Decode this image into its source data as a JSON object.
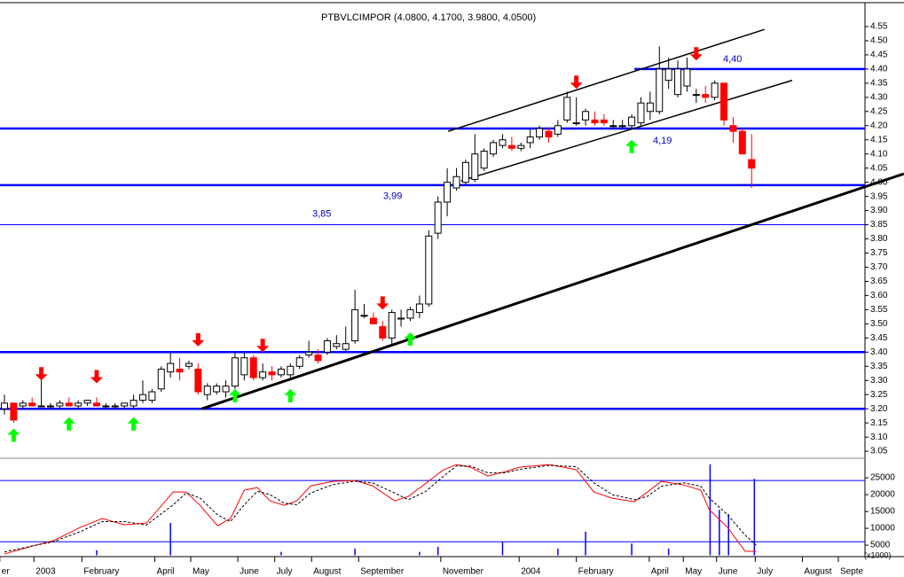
{
  "chart_data": {
    "type": "candlestick",
    "title": "PTBVLCIMPOR (4.0800, 4.1700, 3.9800, 4.0500)",
    "x": [
      0,
      1,
      2,
      3,
      4,
      5,
      6,
      7,
      8,
      9,
      10,
      11,
      12,
      13,
      14,
      15,
      16,
      17,
      18,
      19,
      20,
      21,
      22,
      23,
      24,
      25,
      26,
      27,
      28,
      29,
      30,
      31,
      32,
      33,
      34,
      35,
      36,
      37,
      38,
      39,
      40,
      41,
      42,
      43,
      44,
      45,
      46,
      47,
      48,
      49,
      50,
      51,
      52,
      53,
      54,
      55,
      56,
      57,
      58,
      59,
      60,
      61,
      62,
      63,
      64,
      65,
      66,
      67,
      68,
      69,
      70,
      71,
      72,
      73,
      74,
      75,
      76,
      77,
      78,
      79,
      80,
      81
    ],
    "open": [
      3.2,
      3.22,
      3.21,
      3.22,
      3.21,
      3.21,
      3.21,
      3.22,
      3.21,
      3.22,
      3.22,
      3.21,
      3.21,
      3.21,
      3.21,
      3.23,
      3.23,
      3.27,
      3.33,
      3.34,
      3.35,
      3.34,
      3.25,
      3.26,
      3.26,
      3.28,
      3.32,
      3.38,
      3.31,
      3.33,
      3.32,
      3.32,
      3.35,
      3.39,
      3.39,
      3.4,
      3.42,
      3.41,
      3.44,
      3.53,
      3.52,
      3.49,
      3.45,
      3.52,
      3.52,
      3.54,
      3.57,
      3.82,
      3.93,
      3.98,
      4.0,
      4.01,
      4.05,
      4.1,
      4.13,
      4.13,
      4.12,
      4.14,
      4.16,
      4.18,
      4.17,
      4.22,
      4.21,
      4.22,
      4.22,
      4.22,
      4.2,
      4.2,
      4.2,
      4.21,
      4.25,
      4.25,
      4.36,
      4.31,
      4.34,
      4.31,
      4.31,
      4.3,
      4.35,
      4.2,
      4.18,
      4.08
    ],
    "high": [
      3.25,
      3.22,
      3.23,
      3.24,
      3.31,
      3.22,
      3.23,
      3.24,
      3.23,
      3.23,
      3.24,
      3.22,
      3.22,
      3.22,
      3.25,
      3.3,
      3.27,
      3.35,
      3.4,
      3.38,
      3.37,
      3.36,
      3.29,
      3.29,
      3.3,
      3.4,
      3.4,
      3.39,
      3.36,
      3.35,
      3.35,
      3.36,
      3.39,
      3.44,
      3.41,
      3.45,
      3.46,
      3.49,
      3.62,
      3.57,
      3.54,
      3.51,
      3.55,
      3.55,
      3.56,
      3.6,
      3.83,
      3.95,
      4.05,
      4.05,
      4.08,
      4.17,
      4.12,
      4.15,
      4.17,
      4.16,
      4.14,
      4.19,
      4.2,
      4.19,
      4.22,
      4.32,
      4.3,
      4.26,
      4.25,
      4.24,
      4.22,
      4.22,
      4.24,
      4.3,
      4.32,
      4.48,
      4.44,
      4.43,
      4.44,
      4.33,
      4.34,
      4.36,
      4.35,
      4.23,
      4.19,
      4.17
    ],
    "low": [
      3.18,
      3.15,
      3.2,
      3.21,
      3.21,
      3.2,
      3.2,
      3.21,
      3.2,
      3.21,
      3.21,
      3.2,
      3.2,
      3.2,
      3.2,
      3.22,
      3.22,
      3.26,
      3.31,
      3.3,
      3.34,
      3.25,
      3.23,
      3.25,
      3.24,
      3.27,
      3.3,
      3.3,
      3.3,
      3.3,
      3.31,
      3.31,
      3.34,
      3.38,
      3.36,
      3.39,
      3.41,
      3.4,
      3.43,
      3.52,
      3.5,
      3.44,
      3.42,
      3.49,
      3.51,
      3.52,
      3.56,
      3.8,
      3.88,
      3.97,
      3.99,
      4.0,
      4.04,
      4.09,
      4.12,
      4.11,
      4.11,
      4.12,
      4.15,
      4.14,
      4.16,
      4.21,
      4.2,
      4.2,
      4.2,
      4.2,
      4.19,
      4.19,
      4.19,
      4.2,
      4.22,
      4.24,
      4.33,
      4.3,
      4.32,
      4.28,
      4.28,
      4.29,
      4.2,
      4.14,
      4.1,
      3.98
    ],
    "close": [
      3.22,
      3.16,
      3.22,
      3.21,
      3.21,
      3.21,
      3.22,
      3.21,
      3.22,
      3.23,
      3.21,
      3.21,
      3.21,
      3.22,
      3.23,
      3.25,
      3.26,
      3.34,
      3.36,
      3.33,
      3.36,
      3.26,
      3.28,
      3.28,
      3.28,
      3.38,
      3.38,
      3.31,
      3.33,
      3.32,
      3.34,
      3.35,
      3.38,
      3.4,
      3.37,
      3.44,
      3.43,
      3.43,
      3.55,
      3.53,
      3.5,
      3.45,
      3.54,
      3.52,
      3.55,
      3.57,
      3.81,
      3.93,
      4.0,
      4.02,
      4.07,
      4.1,
      4.11,
      4.14,
      4.15,
      4.12,
      4.13,
      4.16,
      4.19,
      4.16,
      4.2,
      4.3,
      4.21,
      4.25,
      4.21,
      4.21,
      4.2,
      4.2,
      4.23,
      4.28,
      4.28,
      4.4,
      4.4,
      4.4,
      4.4,
      4.31,
      4.3,
      4.35,
      4.22,
      4.18,
      4.1,
      4.05
    ],
    "up_color": "#ffffff",
    "down_color": "#ff0000",
    "xlim": [
      0,
      93
    ],
    "xticks": [
      {
        "value": -0.5,
        "label": "er"
      },
      {
        "value": 3.2,
        "label": "2003"
      },
      {
        "value": 8.4,
        "label": "February"
      },
      {
        "value": 16.3,
        "label": "April"
      },
      {
        "value": 20.2,
        "label": "May"
      },
      {
        "value": 25.3,
        "label": "June"
      },
      {
        "value": 29.3,
        "label": "July"
      },
      {
        "value": 33.3,
        "label": "August"
      },
      {
        "value": 38.4,
        "label": "September"
      },
      {
        "value": 47.3,
        "label": "November"
      },
      {
        "value": 55.8,
        "label": "2004"
      },
      {
        "value": 62,
        "label": "February"
      },
      {
        "value": 69.9,
        "label": "April"
      },
      {
        "value": 73.6,
        "label": "May"
      },
      {
        "value": 77.2,
        "label": "June"
      },
      {
        "value": 81.4,
        "label": "July"
      },
      {
        "value": 86.5,
        "label": "August"
      },
      {
        "value": 90.4,
        "label": "Septe"
      }
    ],
    "ylim": [
      3.04,
      4.62
    ],
    "yticks": [
      3.05,
      {
        "value": 3.1,
        "label": "3.10"
      },
      3.15,
      {
        "value": 3.2,
        "label": "3.20"
      },
      3.25,
      {
        "value": 3.3,
        "label": "3.30"
      },
      3.35,
      {
        "value": 3.4,
        "label": "3.40"
      },
      3.45,
      {
        "value": 3.5,
        "label": "3.50"
      },
      3.55,
      {
        "value": 3.6,
        "label": "3.60"
      },
      3.65,
      {
        "value": 3.7,
        "label": "3.70"
      },
      3.75,
      {
        "value": 3.8,
        "label": "3.80"
      },
      3.85,
      {
        "value": 3.9,
        "label": "3.90"
      },
      3.95,
      {
        "value": 4,
        "label": "4.00"
      },
      4.05,
      {
        "value": 4.1,
        "label": "4.10"
      },
      4.15,
      {
        "value": 4.2,
        "label": "4.20"
      },
      4.25,
      {
        "value": 4.3,
        "label": "4.30"
      },
      4.35,
      {
        "value": 4.4,
        "label": "4.40"
      },
      4.45,
      {
        "value": 4.5,
        "label": "4.50"
      },
      4.55
    ],
    "hlines": [
      {
        "value": 4.4,
        "label": "4,40",
        "x_from": 68.3,
        "color": "#0000ff"
      },
      {
        "value": 4.19,
        "label": "4,19",
        "color": "#0000ff"
      },
      {
        "value": 3.99,
        "label": "3,99",
        "color": "#0000ff"
      },
      {
        "value": 3.85,
        "label": "3,85",
        "color": "#0000ff"
      },
      {
        "value": 3.4,
        "color": "#0000ff"
      },
      {
        "value": 3.2,
        "color": "#0000ff"
      }
    ],
    "trendlines": [
      {
        "x": [
          48.1,
          82.4
        ],
        "values": [
          4.18,
          4.54
        ],
        "color": "#000000"
      },
      {
        "x": [
          49.5,
          85.4
        ],
        "values": [
          4.005,
          4.36
        ],
        "color": "#000000"
      },
      {
        "x": [
          21.4,
          97.5
        ],
        "values": [
          3.2,
          4.03
        ],
        "color": "#000000"
      }
    ],
    "buy_signals": {
      "color": "#00ff00",
      "x": [
        1,
        7,
        14,
        25,
        31,
        44,
        68
      ],
      "values": [
        3.13,
        3.17,
        3.17,
        3.27,
        3.27,
        3.47,
        4.15
      ]
    },
    "sell_signals": {
      "color": "#ff0000",
      "x": [
        4,
        10,
        21,
        28,
        41,
        62,
        75
      ],
      "values": [
        3.3,
        3.29,
        3.42,
        3.4,
        3.55,
        4.33,
        4.43
      ]
    },
    "lower": {
      "ylim": [
        2000,
        30000
      ],
      "yticks": [
        5000,
        10000,
        15000,
        20000,
        25000
      ],
      "axis_label": "(x1000)",
      "hlines": [
        24200,
        6000
      ],
      "hline_color": "#0000ff",
      "series": [
        {
          "color": "#ff0000",
          "dashed": false,
          "x": [
            0,
            3.4,
            5.3,
            8.2,
            10.6,
            13,
            15.4,
            18.3,
            19.7,
            21.2,
            23.1,
            24.5,
            26,
            27.4,
            28.8,
            30.3,
            31.7,
            33.2,
            35.6,
            38,
            39.9,
            42.3,
            43.8,
            45.7,
            47.6,
            49,
            50.5,
            52.4,
            54.3,
            55.8,
            59.1,
            62,
            63.9,
            65.9,
            68.3,
            69.7,
            71.2,
            73.6,
            75.5,
            76.4,
            78.4,
            80.3,
            81.5
          ],
          "values": [
            2380,
            5010,
            6330,
            10270,
            12900,
            11060,
            11590,
            20790,
            20790,
            16850,
            10800,
            12900,
            21320,
            22110,
            18160,
            16850,
            18160,
            22630,
            23950,
            24210,
            22630,
            18160,
            19480,
            23420,
            27370,
            28950,
            28160,
            25530,
            26840,
            28160,
            28950,
            27370,
            20790,
            18950,
            17900,
            20790,
            23950,
            22900,
            21320,
            15530,
            10270,
            3170,
            3170
          ]
        },
        {
          "color": "#000000",
          "dashed": true,
          "x": [
            0,
            3.4,
            5.3,
            8.2,
            10.6,
            13,
            15.4,
            18.3,
            19.7,
            21.2,
            23.1,
            24.5,
            26,
            27.4,
            28.8,
            30.3,
            31.7,
            33.2,
            35.6,
            38,
            39.9,
            42.3,
            43.8,
            45.7,
            47.6,
            49,
            50.5,
            52.4,
            54.3,
            55.8,
            59.1,
            62,
            63.9,
            65.9,
            68.3,
            69.7,
            71.2,
            73.6,
            75.5,
            76.4,
            78.4,
            80.3,
            81.5
          ],
          "values": [
            3000,
            5000,
            6000,
            9000,
            12000,
            12000,
            11000,
            17000,
            20500,
            19000,
            14000,
            12000,
            17000,
            21000,
            20000,
            17500,
            17000,
            20500,
            23000,
            24000,
            23500,
            20500,
            18500,
            21000,
            25500,
            28500,
            28500,
            26500,
            26500,
            27500,
            28700,
            28300,
            23500,
            20000,
            18500,
            19500,
            22500,
            23500,
            22500,
            19000,
            14000,
            8000,
            5000
          ]
        }
      ],
      "volume": {
        "color": "#0000ff",
        "x": [
          10,
          18,
          30,
          38,
          45,
          47,
          54,
          60,
          63,
          68,
          72,
          76.5,
          77.5,
          78.5,
          81.3
        ],
        "values": [
          3500,
          11600,
          3000,
          4000,
          3000,
          4500,
          6000,
          4000,
          9000,
          5500,
          4000,
          29000,
          15500,
          14200,
          24700
        ]
      }
    }
  }
}
